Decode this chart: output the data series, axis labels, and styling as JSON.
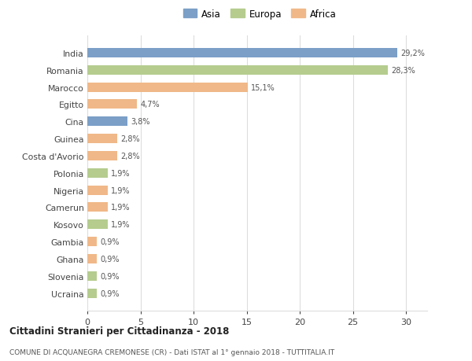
{
  "categories": [
    "Ucraina",
    "Slovenia",
    "Ghana",
    "Gambia",
    "Kosovo",
    "Camerun",
    "Nigeria",
    "Polonia",
    "Costa d'Avorio",
    "Guinea",
    "Cina",
    "Egitto",
    "Marocco",
    "Romania",
    "India"
  ],
  "values": [
    0.9,
    0.9,
    0.9,
    0.9,
    1.9,
    1.9,
    1.9,
    1.9,
    2.8,
    2.8,
    3.8,
    4.7,
    15.1,
    28.3,
    29.2
  ],
  "labels": [
    "0,9%",
    "0,9%",
    "0,9%",
    "0,9%",
    "1,9%",
    "1,9%",
    "1,9%",
    "1,9%",
    "2,8%",
    "2,8%",
    "3,8%",
    "4,7%",
    "15,1%",
    "28,3%",
    "29,2%"
  ],
  "colors": [
    "#b5cc8e",
    "#b5cc8e",
    "#f0b888",
    "#f0b888",
    "#b5cc8e",
    "#f0b888",
    "#f0b888",
    "#b5cc8e",
    "#f0b888",
    "#f0b888",
    "#7b9fc7",
    "#f0b888",
    "#f0b888",
    "#b5cc8e",
    "#7b9fc7"
  ],
  "legend_labels": [
    "Asia",
    "Europa",
    "Africa"
  ],
  "legend_colors": [
    "#7b9fc7",
    "#b5cc8e",
    "#f0b888"
  ],
  "title_bold": "Cittadini Stranieri per Cittadinanza - 2018",
  "subtitle": "COMUNE DI ACQUANEGRA CREMONESE (CR) - Dati ISTAT al 1° gennaio 2018 - TUTTITALIA.IT",
  "xlim": [
    0,
    32
  ],
  "xticks": [
    0,
    5,
    10,
    15,
    20,
    25,
    30
  ],
  "background_color": "#ffffff",
  "grid_color": "#dddddd"
}
